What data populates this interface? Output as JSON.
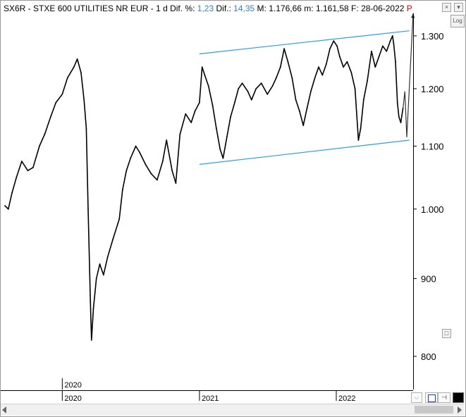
{
  "header": {
    "symbol": "SX6R - STXE 600 UTILITIES NR EUR -",
    "period": "1 d",
    "dif_pct_label": "Dif. %:",
    "dif_pct_value": "1,23",
    "dif_label": "Dif.:",
    "dif_value": "14,35",
    "max_label": "M:",
    "max_value": "1.176,66",
    "min_label": "m:",
    "min_value": "1.161,58",
    "date_label": "F:",
    "date_value": "28-06-2022",
    "flag": "P"
  },
  "controls": {
    "log_label": "Log",
    "close_label": "×",
    "expand_label": "□",
    "menu_label": "▾",
    "fit_label": "⌵",
    "pin_label": "⊣"
  },
  "colors": {
    "price_line": "#000000",
    "channel_line": "#2aa0d8",
    "flag_red": "#e00000",
    "value_blue": "#3a7cc7"
  },
  "chart_data": {
    "type": "line",
    "scale": "log",
    "title": "SX6R - STXE 600 UTILITIES NR EUR",
    "y_ticks": [
      800,
      900,
      1000,
      1100,
      1200,
      1300
    ],
    "y_tick_labels": [
      "800",
      "900",
      "1.000",
      "1.100",
      "1.200",
      "1.300"
    ],
    "x_ticks": [
      "2020",
      "2021",
      "2022"
    ],
    "x_top_label": "2020",
    "ylim": [
      760,
      1345
    ],
    "series": [
      {
        "points": [
          [
            "2019-08-01",
            1005
          ],
          [
            "2019-08-10",
            1000
          ],
          [
            "2019-08-20",
            1025
          ],
          [
            "2019-09-01",
            1050
          ],
          [
            "2019-09-15",
            1075
          ],
          [
            "2019-10-01",
            1060
          ],
          [
            "2019-10-15",
            1065
          ],
          [
            "2019-11-01",
            1100
          ],
          [
            "2019-11-15",
            1120
          ],
          [
            "2019-12-01",
            1150
          ],
          [
            "2019-12-15",
            1175
          ],
          [
            "2020-01-01",
            1190
          ],
          [
            "2020-01-15",
            1220
          ],
          [
            "2020-02-01",
            1240
          ],
          [
            "2020-02-10",
            1255
          ],
          [
            "2020-02-20",
            1230
          ],
          [
            "2020-02-28",
            1180
          ],
          [
            "2020-03-05",
            1130
          ],
          [
            "2020-03-10",
            1000
          ],
          [
            "2020-03-16",
            870
          ],
          [
            "2020-03-19",
            820
          ],
          [
            "2020-03-24",
            860
          ],
          [
            "2020-04-01",
            900
          ],
          [
            "2020-04-10",
            920
          ],
          [
            "2020-04-20",
            905
          ],
          [
            "2020-05-01",
            930
          ],
          [
            "2020-05-15",
            955
          ],
          [
            "2020-06-01",
            985
          ],
          [
            "2020-06-10",
            1030
          ],
          [
            "2020-06-20",
            1060
          ],
          [
            "2020-07-01",
            1080
          ],
          [
            "2020-07-15",
            1100
          ],
          [
            "2020-07-25",
            1090
          ],
          [
            "2020-08-10",
            1070
          ],
          [
            "2020-08-25",
            1055
          ],
          [
            "2020-09-10",
            1045
          ],
          [
            "2020-09-25",
            1075
          ],
          [
            "2020-10-05",
            1110
          ],
          [
            "2020-10-20",
            1060
          ],
          [
            "2020-10-30",
            1040
          ],
          [
            "2020-11-10",
            1120
          ],
          [
            "2020-11-25",
            1155
          ],
          [
            "2020-12-10",
            1140
          ],
          [
            "2020-12-20",
            1160
          ],
          [
            "2021-01-01",
            1175
          ],
          [
            "2021-01-08",
            1240
          ],
          [
            "2021-01-15",
            1225
          ],
          [
            "2021-01-25",
            1205
          ],
          [
            "2021-02-05",
            1170
          ],
          [
            "2021-02-15",
            1130
          ],
          [
            "2021-02-25",
            1095
          ],
          [
            "2021-03-05",
            1080
          ],
          [
            "2021-03-15",
            1115
          ],
          [
            "2021-03-25",
            1150
          ],
          [
            "2021-04-05",
            1175
          ],
          [
            "2021-04-15",
            1200
          ],
          [
            "2021-04-25",
            1210
          ],
          [
            "2021-05-10",
            1195
          ],
          [
            "2021-05-20",
            1180
          ],
          [
            "2021-06-01",
            1200
          ],
          [
            "2021-06-15",
            1210
          ],
          [
            "2021-07-01",
            1190
          ],
          [
            "2021-07-15",
            1205
          ],
          [
            "2021-07-25",
            1220
          ],
          [
            "2021-08-05",
            1240
          ],
          [
            "2021-08-15",
            1275
          ],
          [
            "2021-08-25",
            1250
          ],
          [
            "2021-09-05",
            1220
          ],
          [
            "2021-09-15",
            1180
          ],
          [
            "2021-09-25",
            1160
          ],
          [
            "2021-10-05",
            1135
          ],
          [
            "2021-10-15",
            1165
          ],
          [
            "2021-10-25",
            1195
          ],
          [
            "2021-11-05",
            1220
          ],
          [
            "2021-11-15",
            1240
          ],
          [
            "2021-11-25",
            1225
          ],
          [
            "2021-12-05",
            1245
          ],
          [
            "2021-12-15",
            1275
          ],
          [
            "2021-12-25",
            1290
          ],
          [
            "2022-01-03",
            1280
          ],
          [
            "2022-01-10",
            1260
          ],
          [
            "2022-01-20",
            1240
          ],
          [
            "2022-01-30",
            1250
          ],
          [
            "2022-02-10",
            1230
          ],
          [
            "2022-02-20",
            1200
          ],
          [
            "2022-03-01",
            1110
          ],
          [
            "2022-03-07",
            1130
          ],
          [
            "2022-03-15",
            1180
          ],
          [
            "2022-03-25",
            1215
          ],
          [
            "2022-04-05",
            1270
          ],
          [
            "2022-04-15",
            1240
          ],
          [
            "2022-04-25",
            1260
          ],
          [
            "2022-05-05",
            1280
          ],
          [
            "2022-05-15",
            1270
          ],
          [
            "2022-05-25",
            1290
          ],
          [
            "2022-05-31",
            1300
          ],
          [
            "2022-06-03",
            1285
          ],
          [
            "2022-06-08",
            1250
          ],
          [
            "2022-06-13",
            1175
          ],
          [
            "2022-06-17",
            1150
          ],
          [
            "2022-06-22",
            1140
          ],
          [
            "2022-06-28",
            1165
          ]
        ]
      }
    ],
    "trend_channel": {
      "upper": [
        [
          "2021-01-01",
          1265
        ],
        [
          "2022-07-15",
          1310
        ]
      ],
      "lower": [
        [
          "2021-01-01",
          1070
        ],
        [
          "2022-07-15",
          1110
        ]
      ]
    },
    "projection": {
      "points": [
        [
          "2022-06-28",
          1165
        ],
        [
          "2022-07-03",
          1195
        ],
        [
          "2022-07-08",
          1115
        ],
        [
          "2022-07-25",
          1345
        ]
      ]
    }
  }
}
